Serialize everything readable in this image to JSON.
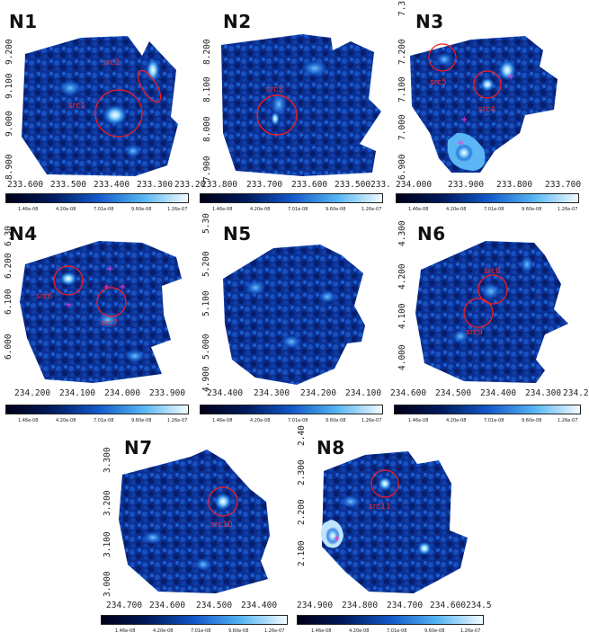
{
  "colormap": {
    "stops": [
      "#000018",
      "#001a5c",
      "#1257c8",
      "#54b4f2",
      "#f2fbff"
    ],
    "tick_labels": [
      "1.46e-08",
      "4.20e-08",
      "7.01e-08",
      "9.60e-08",
      "1.26e-07"
    ]
  },
  "panels": [
    {
      "id": "N1",
      "title": "N1",
      "xticks": [
        "233.600",
        "233.500",
        "233.400",
        "233.300",
        "233.20"
      ],
      "yticks": [
        "9.200",
        "9.100",
        "9.000",
        "8.900"
      ],
      "sources": [
        {
          "label": "src1"
        },
        {
          "label": "src2"
        }
      ]
    },
    {
      "id": "N2",
      "title": "N2",
      "xticks": [
        "233.800",
        "233.700",
        "233.600",
        "233.500",
        "233."
      ],
      "yticks": [
        "8.200",
        "8.100",
        "8.000",
        "7.900"
      ],
      "sources": [
        {
          "label": "src3"
        }
      ]
    },
    {
      "id": "N3",
      "title": "N3",
      "xticks": [
        "234.000",
        "233.900",
        "233.800",
        "233.700"
      ],
      "yticks": [
        "7.3",
        "7.200",
        "7.100",
        "7.000",
        "6.900"
      ],
      "sources": [
        {
          "label": "src4"
        },
        {
          "label": "src5"
        }
      ]
    },
    {
      "id": "N4",
      "title": "N4",
      "xticks": [
        "234.200",
        "234.100",
        "234.000",
        "233.900"
      ],
      "yticks": [
        "6.30",
        "6.200",
        "6.100",
        "6.000"
      ],
      "sources": [
        {
          "label": "src6"
        },
        {
          "label": "src7"
        }
      ]
    },
    {
      "id": "N5",
      "title": "N5",
      "xticks": [
        "234.400",
        "234.300",
        "234.200",
        "234.100"
      ],
      "yticks": [
        "5.30",
        "5.200",
        "5.100",
        "5.000",
        "4.900"
      ],
      "sources": []
    },
    {
      "id": "N6",
      "title": "N6",
      "xticks": [
        "234.600",
        "234.500",
        "234.400",
        "234.300",
        "234.20"
      ],
      "yticks": [
        "4.300",
        "4.200",
        "4.100",
        "4.000"
      ],
      "sources": [
        {
          "label": "src8"
        },
        {
          "label": "src9"
        }
      ]
    },
    {
      "id": "N7",
      "title": "N7",
      "xticks": [
        "234.700",
        "234.600",
        "234.500",
        "234.400"
      ],
      "yticks": [
        "3.300",
        "3.200",
        "3.100",
        "3.000"
      ],
      "sources": [
        {
          "label": "src10"
        }
      ]
    },
    {
      "id": "N8",
      "title": "N8",
      "xticks": [
        "234.900",
        "234.800",
        "234.700",
        "234.600",
        "234.5"
      ],
      "yticks": [
        "2.40",
        "2.300",
        "2.200",
        "2.100"
      ],
      "sources": [
        {
          "label": "src11"
        }
      ]
    }
  ]
}
